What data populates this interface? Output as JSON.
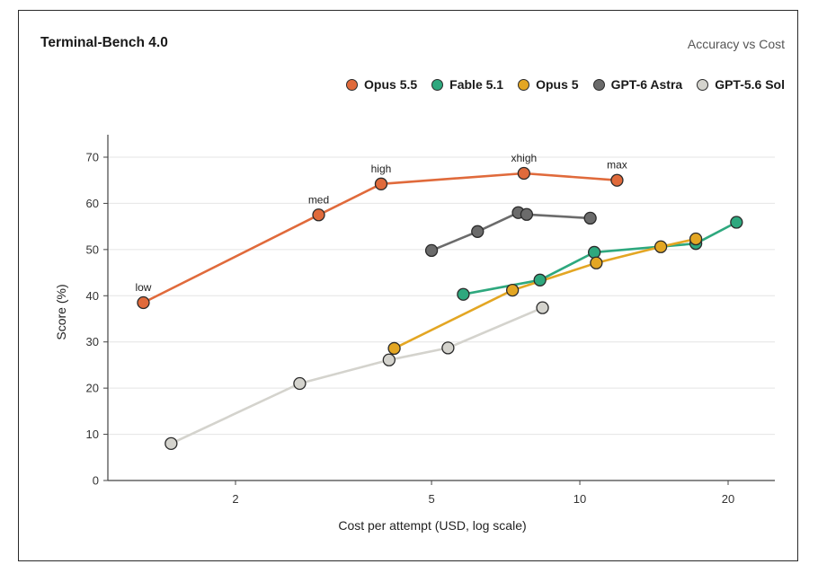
{
  "chart_data": {
    "type": "line",
    "title": "Terminal-Bench 4.0",
    "subtitle": "Accuracy vs Cost",
    "xlabel": "Cost per attempt (USD, log scale)",
    "ylabel": "Score (%)",
    "x_scale": "log",
    "xlim": [
      1.2,
      25
    ],
    "ylim": [
      0,
      75
    ],
    "x_ticks": [
      2,
      5,
      10,
      20
    ],
    "y_ticks": [
      0,
      10,
      20,
      30,
      40,
      50,
      60,
      70
    ],
    "grid": "horizontal",
    "legend_position": "top-right",
    "series": [
      {
        "name": "Opus 5.5",
        "color": "#e06a3b",
        "points": [
          {
            "x": 1.3,
            "y": 38.5,
            "label": "low"
          },
          {
            "x": 2.95,
            "y": 57.5,
            "label": "med"
          },
          {
            "x": 3.95,
            "y": 64.2,
            "label": "high"
          },
          {
            "x": 7.7,
            "y": 66.5,
            "label": "xhigh"
          },
          {
            "x": 11.9,
            "y": 65.0,
            "label": "max"
          }
        ]
      },
      {
        "name": "Fable 5.1",
        "color": "#2ea87e",
        "points": [
          {
            "x": 5.8,
            "y": 40.3
          },
          {
            "x": 8.3,
            "y": 43.4
          },
          {
            "x": 10.7,
            "y": 49.4
          },
          {
            "x": 17.2,
            "y": 51.3
          },
          {
            "x": 20.8,
            "y": 55.9
          }
        ]
      },
      {
        "name": "Opus 5",
        "color": "#e3a623",
        "points": [
          {
            "x": 4.2,
            "y": 28.6
          },
          {
            "x": 7.3,
            "y": 41.2
          },
          {
            "x": 10.8,
            "y": 47.1
          },
          {
            "x": 14.6,
            "y": 50.6
          },
          {
            "x": 17.2,
            "y": 52.3
          }
        ]
      },
      {
        "name": "GPT-6 Astra",
        "color": "#6b6b6b",
        "points": [
          {
            "x": 5.0,
            "y": 49.8
          },
          {
            "x": 6.2,
            "y": 53.9
          },
          {
            "x": 7.5,
            "y": 58.0
          },
          {
            "x": 7.8,
            "y": 57.6
          },
          {
            "x": 10.5,
            "y": 56.8
          }
        ]
      },
      {
        "name": "GPT-5.6 Sol",
        "color": "#d4d3cd",
        "points": [
          {
            "x": 1.48,
            "y": 8.0
          },
          {
            "x": 2.7,
            "y": 21.0
          },
          {
            "x": 4.1,
            "y": 26.1
          },
          {
            "x": 5.4,
            "y": 28.7
          },
          {
            "x": 8.4,
            "y": 37.4
          }
        ]
      }
    ]
  }
}
